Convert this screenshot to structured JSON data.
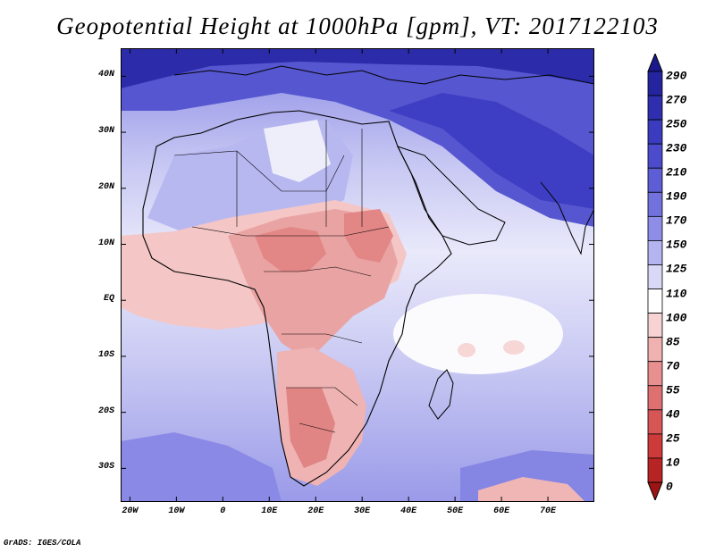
{
  "title": "Geopotential Height at 1000hPa [gpm], VT: 2017122103",
  "map": {
    "lat_labels": [
      "40N",
      "30N",
      "20N",
      "10N",
      "EQ",
      "10S",
      "20S",
      "30S"
    ],
    "lon_labels": [
      "20W",
      "10W",
      "0",
      "10E",
      "20E",
      "30E",
      "40E",
      "50E",
      "60E",
      "70E"
    ],
    "lat_values": [
      40,
      30,
      20,
      10,
      0,
      -10,
      -20,
      -30
    ],
    "lon_values": [
      -20,
      -10,
      0,
      10,
      20,
      30,
      40,
      50,
      60,
      70
    ],
    "lat_range": [
      -36,
      45
    ],
    "lon_range": [
      -22,
      80
    ]
  },
  "colorbar": {
    "labels": [
      "290",
      "270",
      "250",
      "230",
      "210",
      "190",
      "170",
      "150",
      "125",
      "110",
      "100",
      "85",
      "70",
      "55",
      "40",
      "25",
      "10",
      "0"
    ],
    "colors": [
      "#1a1a8c",
      "#24249e",
      "#2e2eae",
      "#3b3bbf",
      "#4b4bcc",
      "#5d5dd6",
      "#7272df",
      "#8e8ee8",
      "#b4b4f0",
      "#d9d9f7",
      "#ffffff",
      "#f7d3d3",
      "#f0b1b1",
      "#e89090",
      "#df7070",
      "#d65555",
      "#cc3a3a",
      "#b82424",
      "#9c1414"
    ]
  },
  "credit": "GrADS: IGES/COLA"
}
